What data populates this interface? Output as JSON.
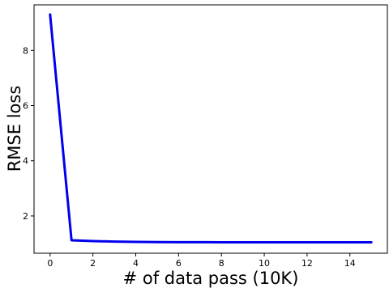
{
  "chart_data": {
    "type": "line",
    "title": "",
    "xlabel": "# of data pass (10K)",
    "ylabel": "RMSE loss",
    "xlim": [
      -0.75,
      15.75
    ],
    "ylim": [
      0.65,
      9.65
    ],
    "xticks": [
      0,
      2,
      4,
      6,
      8,
      10,
      12,
      14
    ],
    "yticks": [
      2,
      4,
      6,
      8
    ],
    "grid": false,
    "legend": "none",
    "series": [
      {
        "color": "#0000ee",
        "x": [
          0,
          1,
          2,
          3,
          4,
          5,
          6,
          7,
          8,
          9,
          10,
          11,
          12,
          13,
          14,
          15
        ],
        "y": [
          9.3,
          1.12,
          1.09,
          1.07,
          1.06,
          1.055,
          1.05,
          1.05,
          1.045,
          1.045,
          1.045,
          1.045,
          1.045,
          1.045,
          1.045,
          1.045
        ]
      }
    ]
  }
}
